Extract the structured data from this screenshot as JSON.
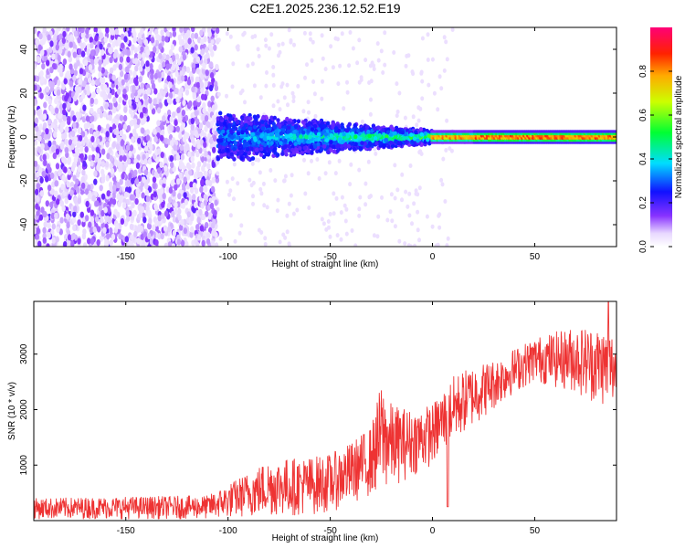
{
  "figure": {
    "title": "C2E1.2025.236.12.52.E19"
  },
  "chart_data": [
    {
      "type": "heatmap",
      "xlabel": "Height of straight line (km)",
      "ylabel": "Frequency (Hz)",
      "xlim": [
        -195,
        90
      ],
      "ylim": [
        -50,
        50
      ],
      "xticks": [
        -150,
        -100,
        -50,
        0,
        50
      ],
      "yticks": [
        -40,
        -20,
        0,
        20,
        40
      ],
      "colorbar": {
        "label": "Normalized spectral amplitude",
        "range": [
          0.0,
          1.0
        ],
        "ticks": [
          0.0,
          0.2,
          0.4,
          0.6,
          0.8
        ],
        "tick_labels": [
          "0.0",
          "0.2",
          "0.4",
          "0.6",
          "0.8"
        ],
        "colormap": "rainbow (white to violet, blue, cyan, green, yellow, orange, red, magenta)"
      },
      "description_regions": [
        {
          "x_range": [
            -195,
            -105
          ],
          "freq_range": [
            -50,
            50
          ],
          "amplitude": 0.1
        },
        {
          "x_range": [
            -105,
            -20
          ],
          "freq_range": [
            -10,
            10
          ],
          "amplitude": 0.2
        },
        {
          "x_range": [
            -20,
            0
          ],
          "freq_range": [
            -3,
            3
          ],
          "amplitude": 0.4
        },
        {
          "x_range": [
            0,
            90
          ],
          "freq_range": [
            -1.5,
            1.5
          ],
          "amplitude": 0.9
        }
      ]
    },
    {
      "type": "line",
      "xlabel": "Height of straight line (km)",
      "ylabel": "SNR (10 * v/v)",
      "xlim": [
        -195,
        90
      ],
      "ylim": [
        0,
        3950
      ],
      "xticks": [
        -150,
        -100,
        -50,
        0,
        50
      ],
      "yticks": [
        1000,
        2000,
        3000
      ],
      "series": [
        {
          "name": "SNR",
          "color": "#ee3333",
          "envelope": [
            {
              "x": -195,
              "low": 30,
              "high": 400
            },
            {
              "x": -150,
              "low": 30,
              "high": 430
            },
            {
              "x": -110,
              "low": 30,
              "high": 450
            },
            {
              "x": -100,
              "low": 50,
              "high": 650
            },
            {
              "x": -80,
              "low": 80,
              "high": 1100
            },
            {
              "x": -60,
              "low": 100,
              "high": 1150
            },
            {
              "x": -50,
              "low": 150,
              "high": 1200
            },
            {
              "x": -40,
              "low": 300,
              "high": 1400
            },
            {
              "x": -30,
              "low": 450,
              "high": 1700
            },
            {
              "x": -25,
              "low": 500,
              "high": 2500
            },
            {
              "x": -20,
              "low": 600,
              "high": 2100
            },
            {
              "x": -10,
              "low": 800,
              "high": 2000
            },
            {
              "x": 0,
              "low": 1000,
              "high": 2100
            },
            {
              "x": 10,
              "low": 1400,
              "high": 2600
            },
            {
              "x": 20,
              "low": 1700,
              "high": 2800
            },
            {
              "x": 30,
              "low": 2000,
              "high": 2900
            },
            {
              "x": 40,
              "low": 2300,
              "high": 3100
            },
            {
              "x": 50,
              "low": 2500,
              "high": 3300
            },
            {
              "x": 60,
              "low": 2400,
              "high": 3400
            },
            {
              "x": 70,
              "low": 2300,
              "high": 3500
            },
            {
              "x": 80,
              "low": 2100,
              "high": 3500
            },
            {
              "x": 90,
              "low": 2000,
              "high": 3400
            }
          ],
          "peak": {
            "x": 86,
            "y": 3950
          },
          "dips": [
            {
              "x": 7.5,
              "y": 250
            }
          ]
        }
      ]
    }
  ]
}
